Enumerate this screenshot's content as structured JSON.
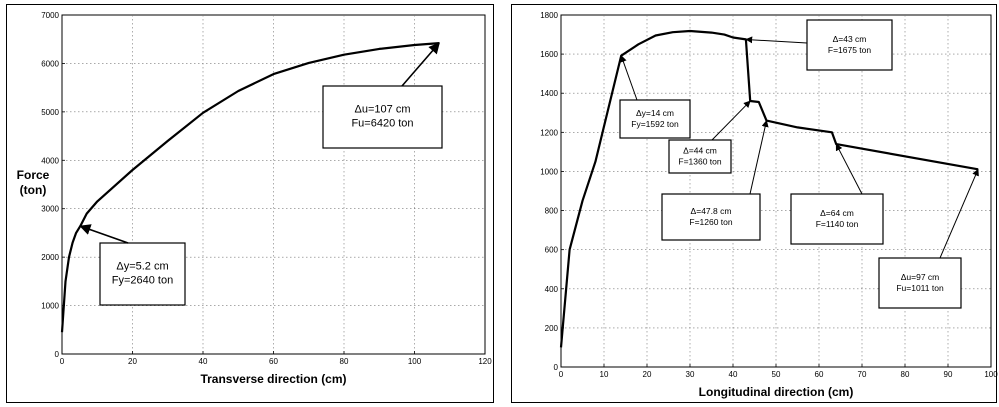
{
  "chart_data": [
    {
      "type": "line",
      "xlabel": "Transverse direction (cm)",
      "ylabel": "Force",
      "ylabel_unit": "(ton)",
      "xlim": [
        0,
        120
      ],
      "ylim": [
        0,
        7000
      ],
      "xticks": [
        0,
        20,
        40,
        60,
        80,
        100,
        120
      ],
      "yticks": [
        0,
        1000,
        2000,
        3000,
        4000,
        5000,
        6000,
        7000
      ],
      "grid": true,
      "series": [
        {
          "x": [
            0,
            1,
            2,
            3,
            4,
            5.2,
            7,
            10,
            20,
            30,
            40,
            50,
            60,
            70,
            80,
            90,
            100,
            107
          ],
          "y": [
            450,
            1500,
            2000,
            2300,
            2500,
            2640,
            2900,
            3150,
            3800,
            4400,
            4980,
            5430,
            5780,
            6010,
            6180,
            6300,
            6380,
            6420
          ]
        }
      ],
      "annotations": [
        {
          "line1": "Δy=5.2 cm",
          "line2": "Fy=2640 ton"
        },
        {
          "line1": "Δu=107 cm",
          "line2": "Fu=6420 ton"
        }
      ]
    },
    {
      "type": "line",
      "xlabel": "Longitudinal direction (cm)",
      "xlim": [
        0,
        100
      ],
      "ylim": [
        0,
        1800
      ],
      "xticks": [
        0,
        10,
        20,
        30,
        40,
        50,
        60,
        70,
        80,
        90,
        100
      ],
      "yticks": [
        0,
        200,
        400,
        600,
        800,
        1000,
        1200,
        1400,
        1600,
        1800
      ],
      "grid": true,
      "series": [
        {
          "x": [
            0,
            2,
            5,
            8,
            14,
            18,
            22,
            26,
            30,
            35,
            38,
            40,
            43,
            44,
            46,
            47.8,
            55,
            63,
            64,
            97
          ],
          "y": [
            100,
            600,
            850,
            1050,
            1592,
            1650,
            1695,
            1712,
            1718,
            1710,
            1700,
            1685,
            1675,
            1360,
            1355,
            1260,
            1225,
            1200,
            1140,
            1011
          ]
        }
      ],
      "annotations": [
        {
          "line1": "Δy=14 cm",
          "line2": "Fy=1592 ton"
        },
        {
          "line1": "Δ=43 cm",
          "line2": "F=1675 ton"
        },
        {
          "line1": "Δ=44 cm",
          "line2": "F=1360 ton"
        },
        {
          "line1": "Δ=47.8 cm",
          "line2": "F=1260 ton"
        },
        {
          "line1": "Δ=64 cm",
          "line2": "F=1140 ton"
        },
        {
          "line1": "Δu=97 cm",
          "line2": "Fu=1011 ton"
        }
      ]
    }
  ]
}
